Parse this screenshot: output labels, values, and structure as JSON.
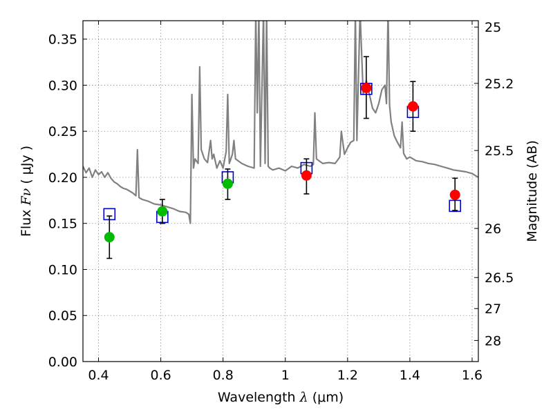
{
  "chart_data": {
    "type": "scatter",
    "xlabel_text": "Wavelength ",
    "xlabel_math": "λ",
    "xlabel_unit": " (μm)",
    "ylabel_text": "Flux ",
    "ylabel_math": "Fν",
    "ylabel_unit": " ( μJy )",
    "y2label": "Magnitude (AB)",
    "xlim": [
      0.35,
      1.62
    ],
    "ylim": [
      0.0,
      0.37
    ],
    "grid": true,
    "x_ticks": [
      0.4,
      0.6,
      0.8,
      1.0,
      1.2,
      1.4,
      1.6
    ],
    "x_tick_labels": [
      "0.4",
      "0.6",
      "0.8",
      "1",
      "1.2",
      "1.4",
      "1.6"
    ],
    "y_ticks": [
      0.0,
      0.05,
      0.1,
      0.15,
      0.2,
      0.25,
      0.3,
      0.35
    ],
    "y_tick_labels": [
      "0.00",
      "0.05",
      "0.10",
      "0.15",
      "0.20",
      "0.25",
      "0.30",
      "0.35"
    ],
    "y2_ticks": [
      {
        "label": "25",
        "flux": 0.3631
      },
      {
        "label": "25.2",
        "flux": 0.302
      },
      {
        "label": "25.5",
        "flux": 0.2291
      },
      {
        "label": "26",
        "flux": 0.1445
      },
      {
        "label": "26.5",
        "flux": 0.0912
      },
      {
        "label": "27",
        "flux": 0.0575
      },
      {
        "label": "28",
        "flux": 0.0229
      }
    ],
    "series": [
      {
        "marker": "circle",
        "color": "#00bb00",
        "x": [
          0.435,
          0.605,
          0.815
        ],
        "y": [
          0.135,
          0.163,
          0.193
        ],
        "yerr_low": [
          0.112,
          0.15,
          0.176
        ],
        "yerr_high": [
          0.158,
          0.176,
          0.209
        ]
      },
      {
        "marker": "circle",
        "color": "#ff0000",
        "x": [
          1.068,
          1.26,
          1.41,
          1.545
        ],
        "y": [
          0.202,
          0.297,
          0.277,
          0.181
        ],
        "yerr_low": [
          0.182,
          0.264,
          0.25,
          0.164
        ],
        "yerr_high": [
          0.22,
          0.331,
          0.304,
          0.199
        ]
      },
      {
        "marker": "open-square",
        "color": "#0000cc",
        "x": [
          0.435,
          0.605,
          0.815,
          1.068,
          1.26,
          1.41,
          1.545
        ],
        "y": [
          0.16,
          0.157,
          0.2,
          0.21,
          0.296,
          0.271,
          0.169
        ]
      },
      {
        "marker": "line",
        "color": "#808080",
        "x": [
          0.35,
          0.36,
          0.37,
          0.38,
          0.39,
          0.4,
          0.41,
          0.42,
          0.43,
          0.44,
          0.45,
          0.46,
          0.47,
          0.48,
          0.49,
          0.5,
          0.51,
          0.52,
          0.525,
          0.53,
          0.54,
          0.56,
          0.58,
          0.6,
          0.62,
          0.64,
          0.66,
          0.68,
          0.69,
          0.695,
          0.7,
          0.705,
          0.71,
          0.72,
          0.725,
          0.73,
          0.74,
          0.75,
          0.76,
          0.765,
          0.77,
          0.78,
          0.79,
          0.8,
          0.81,
          0.815,
          0.82,
          0.83,
          0.835,
          0.84,
          0.86,
          0.88,
          0.9,
          0.905,
          0.91,
          0.915,
          0.92,
          0.93,
          0.935,
          0.94,
          0.945,
          0.95,
          0.96,
          0.98,
          1.0,
          1.02,
          1.04,
          1.06,
          1.08,
          1.09,
          1.095,
          1.1,
          1.12,
          1.14,
          1.16,
          1.175,
          1.18,
          1.19,
          1.2,
          1.21,
          1.22,
          1.225,
          1.23,
          1.24,
          1.25,
          1.26,
          1.27,
          1.28,
          1.29,
          1.3,
          1.31,
          1.32,
          1.325,
          1.33,
          1.335,
          1.34,
          1.35,
          1.36,
          1.37,
          1.375,
          1.38,
          1.39,
          1.4,
          1.42,
          1.44,
          1.46,
          1.48,
          1.5,
          1.52,
          1.54,
          1.56,
          1.58,
          1.6,
          1.62
        ],
        "y": [
          0.212,
          0.205,
          0.21,
          0.2,
          0.208,
          0.203,
          0.206,
          0.2,
          0.205,
          0.199,
          0.195,
          0.193,
          0.19,
          0.188,
          0.187,
          0.185,
          0.183,
          0.18,
          0.23,
          0.178,
          0.176,
          0.174,
          0.171,
          0.17,
          0.168,
          0.166,
          0.163,
          0.162,
          0.16,
          0.15,
          0.29,
          0.21,
          0.22,
          0.215,
          0.32,
          0.23,
          0.22,
          0.216,
          0.24,
          0.22,
          0.225,
          0.21,
          0.218,
          0.21,
          0.228,
          0.29,
          0.215,
          0.225,
          0.24,
          0.22,
          0.215,
          0.212,
          0.21,
          0.38,
          0.27,
          0.38,
          0.212,
          0.38,
          0.215,
          0.38,
          0.212,
          0.21,
          0.208,
          0.21,
          0.207,
          0.212,
          0.21,
          0.214,
          0.212,
          0.214,
          0.27,
          0.22,
          0.215,
          0.216,
          0.215,
          0.222,
          0.25,
          0.225,
          0.232,
          0.238,
          0.24,
          0.38,
          0.24,
          0.38,
          0.29,
          0.305,
          0.29,
          0.275,
          0.27,
          0.28,
          0.295,
          0.3,
          0.28,
          0.38,
          0.278,
          0.26,
          0.245,
          0.238,
          0.232,
          0.26,
          0.226,
          0.22,
          0.222,
          0.218,
          0.217,
          0.215,
          0.214,
          0.212,
          0.21,
          0.208,
          0.207,
          0.206,
          0.204,
          0.2
        ]
      }
    ]
  }
}
